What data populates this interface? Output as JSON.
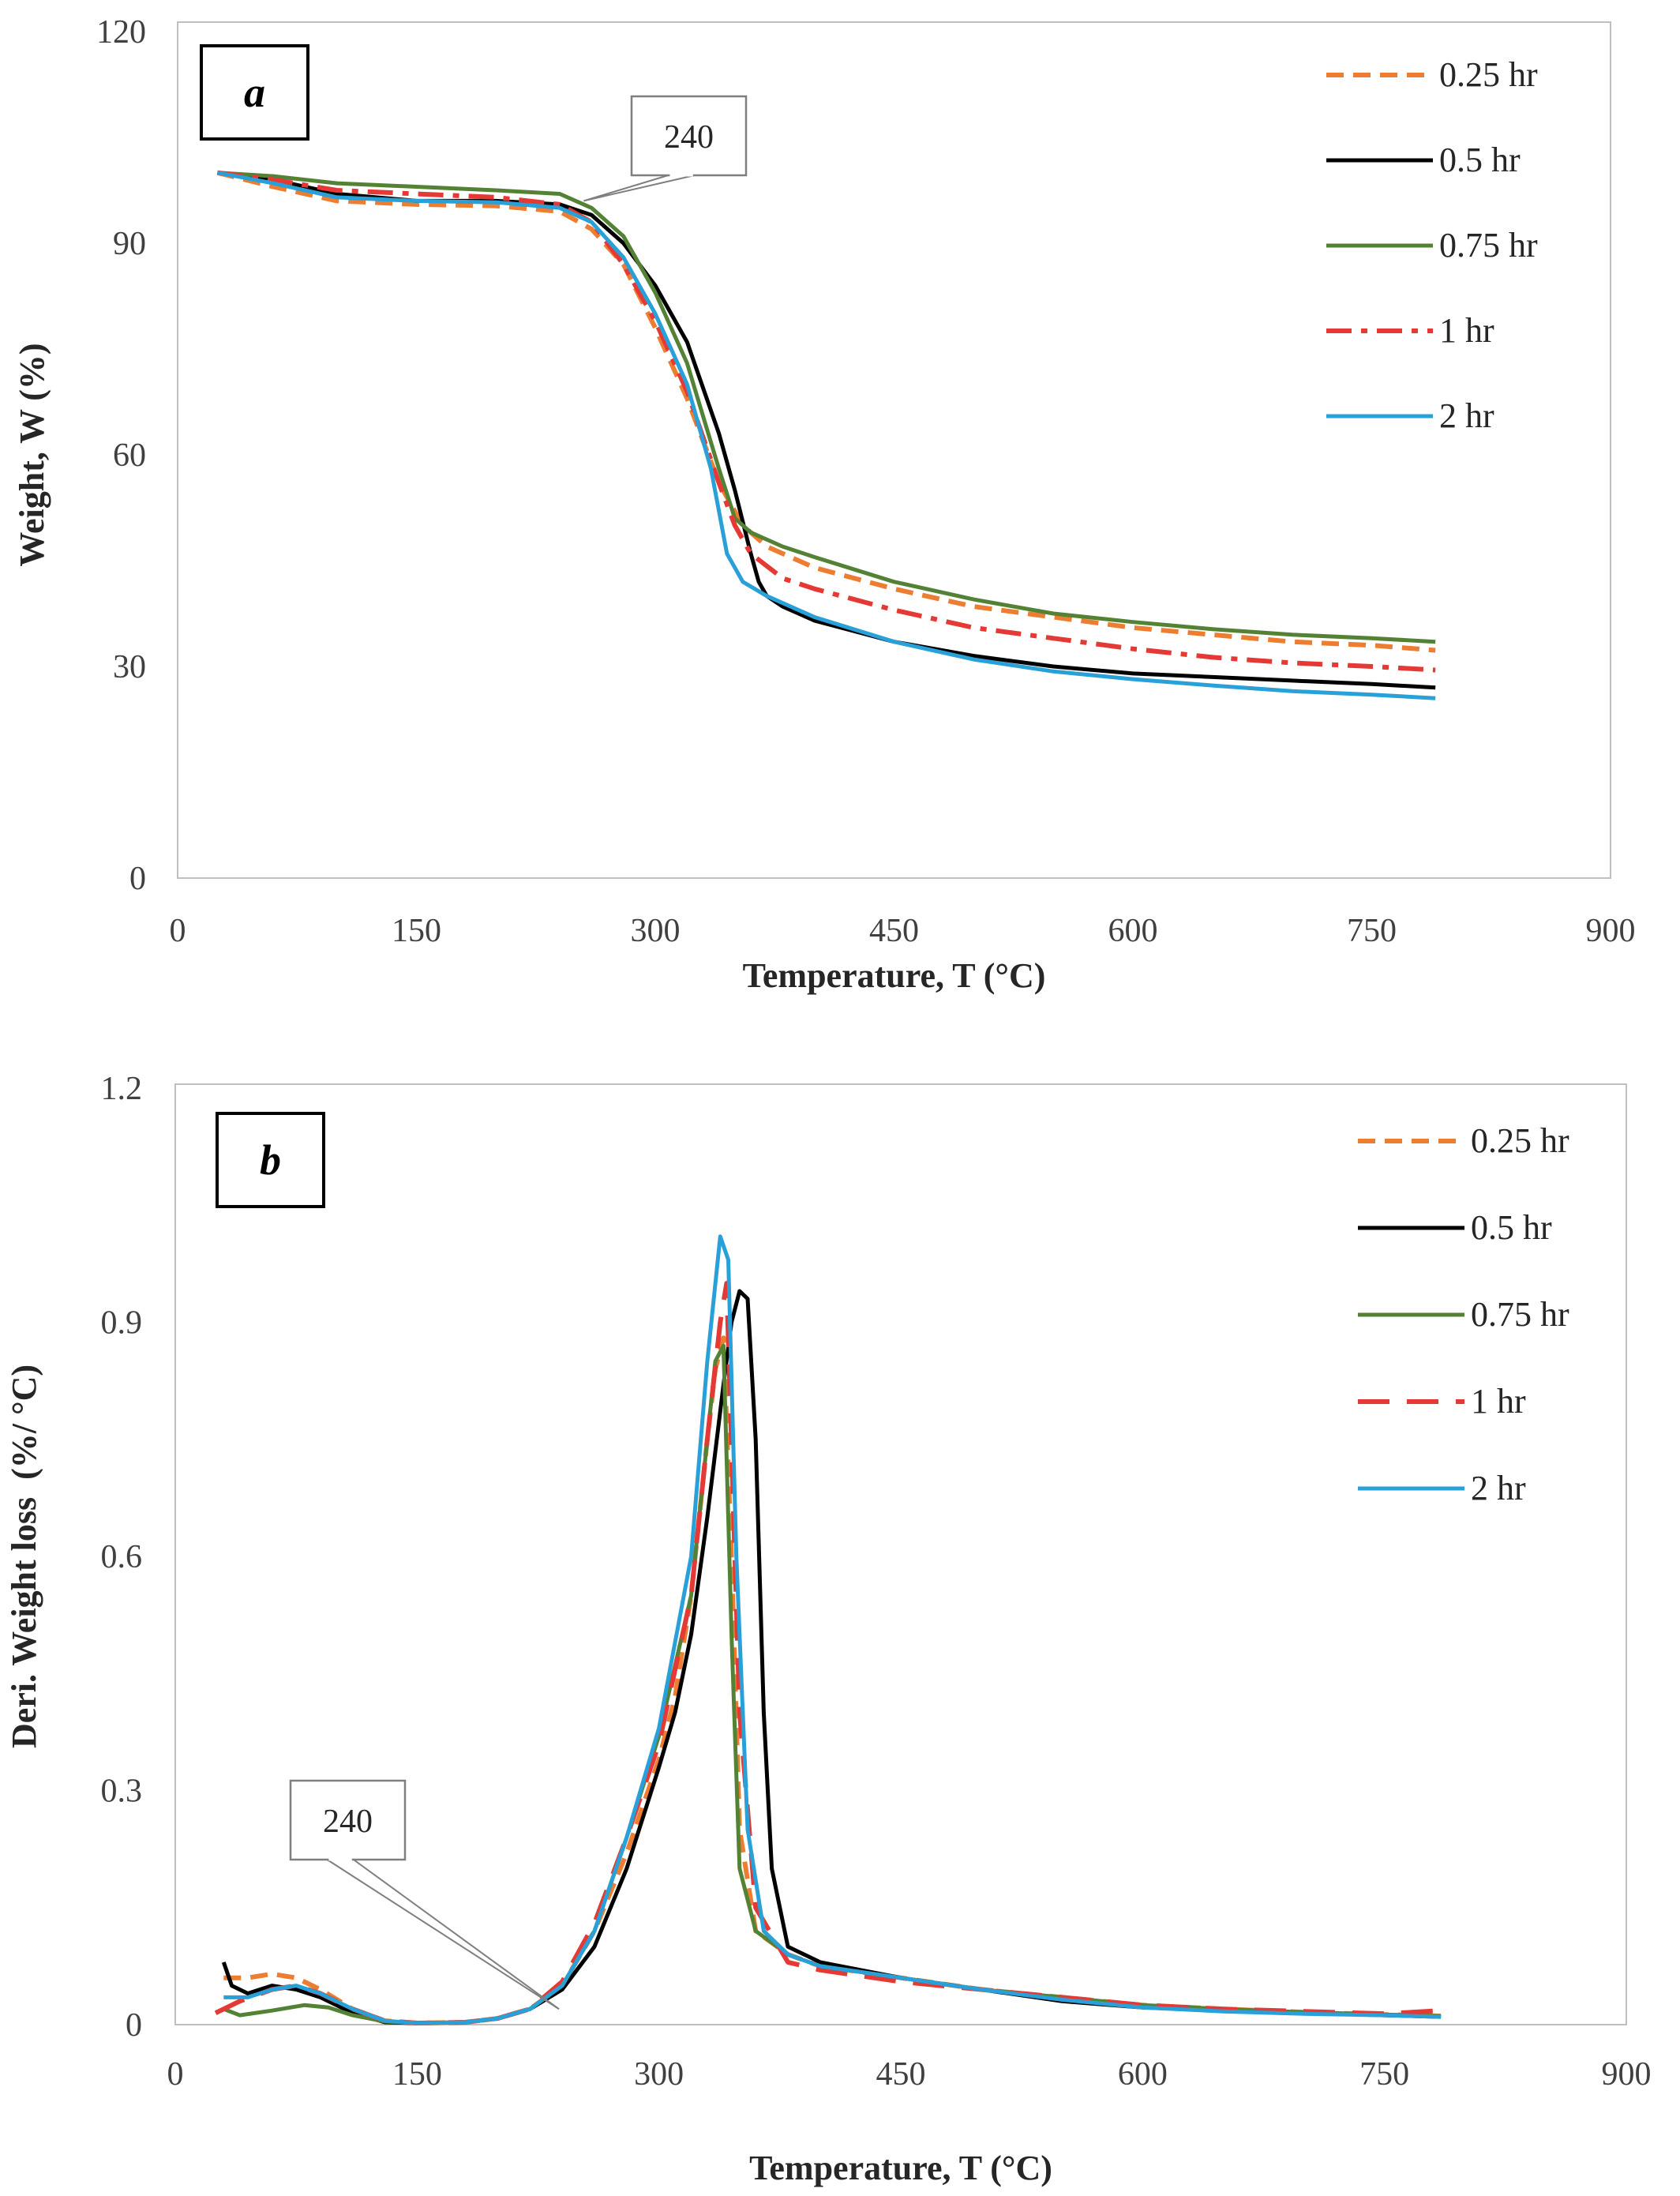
{
  "chart_data": [
    {
      "type": "line",
      "panel_label": "a",
      "xlabel": "Temperature, T (°C)",
      "ylabel": "Weight, W (%)",
      "xlim": [
        0,
        900
      ],
      "ylim": [
        0,
        120
      ],
      "xticks": [
        "0",
        "150",
        "300",
        "450",
        "600",
        "750",
        "900"
      ],
      "yticks": [
        "0",
        "30",
        "60",
        "90",
        "120"
      ],
      "grid": false,
      "legend_position": "top-right",
      "annotation": {
        "text": "240",
        "points_to": [
          255,
          96
        ]
      },
      "series": [
        {
          "name": "0.25 hr",
          "color": "#ED7D31",
          "dash": "dash",
          "x": [
            25,
            60,
            100,
            150,
            200,
            240,
            260,
            280,
            300,
            320,
            340,
            355,
            370,
            400,
            450,
            500,
            550,
            600,
            650,
            700,
            750,
            790
          ],
          "y": [
            100,
            98,
            96,
            95.5,
            95.3,
            94.5,
            92,
            87,
            78,
            68,
            56,
            50,
            47,
            44,
            41,
            38.5,
            37,
            35.5,
            34.5,
            33.5,
            33,
            32.3
          ]
        },
        {
          "name": "0.5 hr",
          "color": "#000000",
          "dash": "solid",
          "x": [
            25,
            60,
            100,
            150,
            200,
            240,
            260,
            280,
            300,
            320,
            340,
            350,
            360,
            365,
            370,
            380,
            400,
            450,
            500,
            550,
            600,
            650,
            700,
            750,
            790
          ],
          "y": [
            100,
            99,
            97,
            96,
            96,
            95.5,
            94,
            90,
            84,
            76,
            63,
            55,
            46,
            42,
            40,
            38.5,
            36.5,
            33.5,
            31.5,
            30,
            29,
            28.5,
            28,
            27.5,
            27
          ]
        },
        {
          "name": "0.75 hr",
          "color": "#548235",
          "dash": "solid",
          "x": [
            25,
            60,
            100,
            150,
            200,
            240,
            260,
            280,
            300,
            320,
            340,
            350,
            360,
            380,
            400,
            450,
            500,
            550,
            600,
            650,
            700,
            750,
            790
          ],
          "y": [
            100,
            99.5,
            98.5,
            98,
            97.5,
            97,
            95,
            91,
            83,
            73,
            58,
            51,
            49,
            47,
            45.5,
            42,
            39.5,
            37.5,
            36.3,
            35.3,
            34.5,
            34,
            33.5
          ]
        },
        {
          "name": "1 hr",
          "color": "#E53935",
          "dash": "dashdot",
          "x": [
            25,
            60,
            100,
            150,
            200,
            240,
            260,
            280,
            300,
            320,
            340,
            350,
            360,
            380,
            400,
            450,
            500,
            550,
            600,
            650,
            700,
            750,
            790
          ],
          "y": [
            100,
            99,
            97.5,
            97,
            96.5,
            95.5,
            93,
            87,
            79,
            69,
            56,
            50,
            46,
            42.5,
            41,
            38,
            35.5,
            34,
            32.5,
            31.3,
            30.5,
            30,
            29.5
          ]
        },
        {
          "name": "2 hr",
          "color": "#2AA0D8",
          "dash": "solid",
          "x": [
            25,
            60,
            100,
            150,
            200,
            240,
            260,
            280,
            300,
            320,
            335,
            345,
            355,
            370,
            400,
            450,
            500,
            550,
            600,
            650,
            700,
            750,
            790
          ],
          "y": [
            100,
            98.5,
            96.5,
            96,
            95.8,
            95,
            93,
            88,
            80,
            70,
            58,
            46,
            42,
            40,
            37,
            33.5,
            31,
            29.3,
            28.2,
            27.3,
            26.5,
            26,
            25.5
          ]
        }
      ]
    },
    {
      "type": "line",
      "panel_label": "b",
      "xlabel": "Temperature, T (°C)",
      "ylabel": "Deri. Weight loss  (%/ °C)",
      "xlim": [
        0,
        900
      ],
      "ylim": [
        0,
        1.2
      ],
      "xticks": [
        "0",
        "150",
        "300",
        "450",
        "600",
        "750",
        "900"
      ],
      "yticks": [
        "0",
        "0.3",
        "0.6",
        "0.9",
        "1.2"
      ],
      "grid": false,
      "legend_position": "top-right",
      "annotation": {
        "text": "240",
        "points_to": [
          238,
          0.02
        ]
      },
      "series": [
        {
          "name": "0.25 hr",
          "color": "#ED7D31",
          "dash": "dash",
          "x": [
            30,
            45,
            60,
            75,
            90,
            110,
            130,
            150,
            180,
            200,
            220,
            240,
            260,
            280,
            300,
            310,
            320,
            330,
            335,
            340,
            345,
            350,
            360,
            380,
            400,
            450,
            500,
            550,
            600,
            650,
            700,
            750,
            785
          ],
          "y": [
            0.06,
            0.06,
            0.065,
            0.06,
            0.045,
            0.02,
            0.005,
            0.002,
            0.003,
            0.008,
            0.02,
            0.05,
            0.12,
            0.22,
            0.34,
            0.42,
            0.55,
            0.75,
            0.84,
            0.88,
            0.6,
            0.25,
            0.12,
            0.09,
            0.075,
            0.06,
            0.045,
            0.035,
            0.025,
            0.02,
            0.016,
            0.013,
            0.011
          ]
        },
        {
          "name": "0.5 hr",
          "color": "#000000",
          "dash": "solid",
          "x": [
            30,
            35,
            45,
            60,
            75,
            90,
            110,
            130,
            150,
            180,
            200,
            220,
            240,
            260,
            280,
            300,
            310,
            320,
            330,
            340,
            345,
            350,
            355,
            360,
            365,
            370,
            380,
            400,
            450,
            500,
            550,
            600,
            650,
            700,
            750,
            785
          ],
          "y": [
            0.08,
            0.05,
            0.04,
            0.05,
            0.045,
            0.035,
            0.015,
            0.003,
            0.002,
            0.003,
            0.008,
            0.02,
            0.045,
            0.1,
            0.2,
            0.33,
            0.4,
            0.5,
            0.65,
            0.82,
            0.9,
            0.94,
            0.93,
            0.75,
            0.4,
            0.2,
            0.1,
            0.08,
            0.06,
            0.045,
            0.03,
            0.022,
            0.018,
            0.015,
            0.012,
            0.01
          ]
        },
        {
          "name": "0.75 hr",
          "color": "#548235",
          "dash": "solid",
          "x": [
            30,
            40,
            60,
            80,
            95,
            110,
            130,
            150,
            180,
            200,
            220,
            240,
            260,
            280,
            300,
            320,
            330,
            335,
            340,
            345,
            350,
            360,
            380,
            400,
            450,
            500,
            550,
            600,
            650,
            700,
            750,
            785
          ],
          "y": [
            0.02,
            0.012,
            0.018,
            0.025,
            0.022,
            0.012,
            0.004,
            0.002,
            0.003,
            0.008,
            0.02,
            0.05,
            0.12,
            0.24,
            0.37,
            0.55,
            0.75,
            0.85,
            0.87,
            0.5,
            0.2,
            0.12,
            0.09,
            0.075,
            0.06,
            0.045,
            0.035,
            0.025,
            0.02,
            0.016,
            0.013,
            0.011
          ]
        },
        {
          "name": "1 hr",
          "color": "#E53935",
          "dash": "longdash",
          "x": [
            25,
            40,
            60,
            75,
            90,
            110,
            130,
            150,
            180,
            200,
            220,
            240,
            260,
            280,
            300,
            320,
            330,
            338,
            342,
            350,
            360,
            380,
            400,
            450,
            500,
            550,
            600,
            650,
            700,
            750,
            785
          ],
          "y": [
            0.015,
            0.03,
            0.045,
            0.05,
            0.04,
            0.02,
            0.005,
            0.002,
            0.003,
            0.008,
            0.02,
            0.055,
            0.13,
            0.24,
            0.36,
            0.55,
            0.75,
            0.9,
            0.95,
            0.4,
            0.15,
            0.08,
            0.07,
            0.055,
            0.045,
            0.035,
            0.025,
            0.02,
            0.017,
            0.014,
            0.018
          ]
        },
        {
          "name": "2 hr",
          "color": "#2AA0D8",
          "dash": "solid",
          "x": [
            30,
            45,
            60,
            75,
            90,
            110,
            130,
            150,
            180,
            200,
            220,
            240,
            260,
            280,
            300,
            320,
            330,
            338,
            343,
            348,
            355,
            365,
            380,
            400,
            450,
            500,
            550,
            600,
            650,
            700,
            750,
            785
          ],
          "y": [
            0.035,
            0.035,
            0.045,
            0.05,
            0.04,
            0.02,
            0.005,
            0.002,
            0.003,
            0.008,
            0.02,
            0.05,
            0.12,
            0.24,
            0.38,
            0.6,
            0.85,
            1.01,
            0.98,
            0.6,
            0.25,
            0.12,
            0.09,
            0.075,
            0.06,
            0.045,
            0.032,
            0.022,
            0.017,
            0.014,
            0.012,
            0.01
          ]
        }
      ]
    }
  ]
}
